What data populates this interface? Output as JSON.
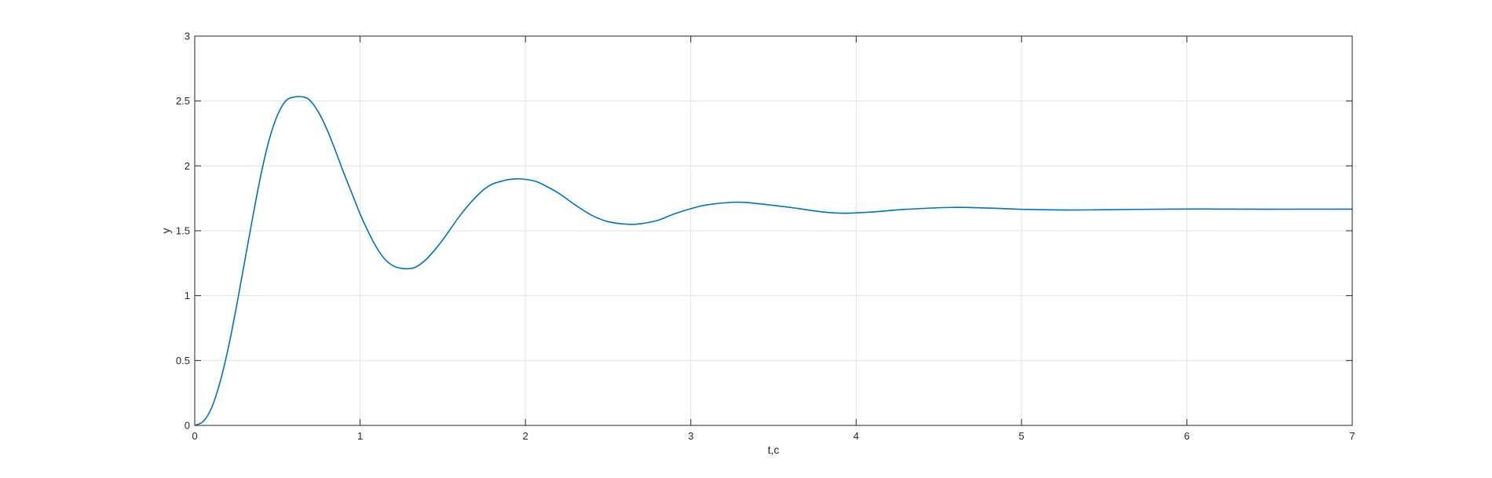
{
  "chart_data": {
    "type": "line",
    "title": "",
    "xlabel": "t,c",
    "ylabel": "y",
    "xlim": [
      0,
      7
    ],
    "ylim": [
      0,
      3
    ],
    "xticks": [
      0,
      1,
      2,
      3,
      4,
      5,
      6,
      7
    ],
    "xtick_labels": [
      "0",
      "1",
      "2",
      "3",
      "4",
      "5",
      "6",
      "7"
    ],
    "yticks": [
      0,
      0.5,
      1,
      1.5,
      2,
      2.5,
      3
    ],
    "ytick_labels": [
      "0",
      "0.5",
      "1",
      "1.5",
      "2",
      "2.5",
      "3"
    ],
    "grid": true,
    "series": [
      {
        "color": "#0072bd",
        "x": [
          0,
          0.05,
          0.1,
          0.15,
          0.2,
          0.25,
          0.3,
          0.35,
          0.4,
          0.45,
          0.5,
          0.55,
          0.6,
          0.66,
          0.7,
          0.75,
          0.8,
          0.85,
          0.9,
          0.95,
          1.0,
          1.05,
          1.1,
          1.15,
          1.2,
          1.25,
          1.31,
          1.35,
          1.4,
          1.45,
          1.5,
          1.55,
          1.6,
          1.65,
          1.7,
          1.75,
          1.8,
          1.85,
          1.9,
          1.97,
          2.05,
          2.1,
          2.2,
          2.3,
          2.4,
          2.5,
          2.62,
          2.7,
          2.8,
          2.9,
          3.0,
          3.1,
          3.27,
          3.4,
          3.6,
          3.8,
          3.93,
          4.1,
          4.3,
          4.58,
          4.8,
          5.0,
          5.25,
          5.5,
          5.9,
          6.2,
          6.5,
          7.0
        ],
        "y": [
          0,
          0.03,
          0.13,
          0.32,
          0.58,
          0.9,
          1.25,
          1.6,
          1.93,
          2.2,
          2.39,
          2.5,
          2.53,
          2.53,
          2.5,
          2.41,
          2.28,
          2.12,
          1.95,
          1.79,
          1.63,
          1.49,
          1.37,
          1.28,
          1.23,
          1.21,
          1.21,
          1.23,
          1.28,
          1.35,
          1.43,
          1.52,
          1.61,
          1.69,
          1.76,
          1.82,
          1.86,
          1.88,
          1.895,
          1.9,
          1.885,
          1.86,
          1.79,
          1.7,
          1.62,
          1.57,
          1.55,
          1.555,
          1.58,
          1.63,
          1.67,
          1.7,
          1.72,
          1.71,
          1.68,
          1.645,
          1.635,
          1.645,
          1.665,
          1.68,
          1.675,
          1.665,
          1.66,
          1.662,
          1.667,
          1.667,
          1.666,
          1.667
        ]
      }
    ]
  }
}
